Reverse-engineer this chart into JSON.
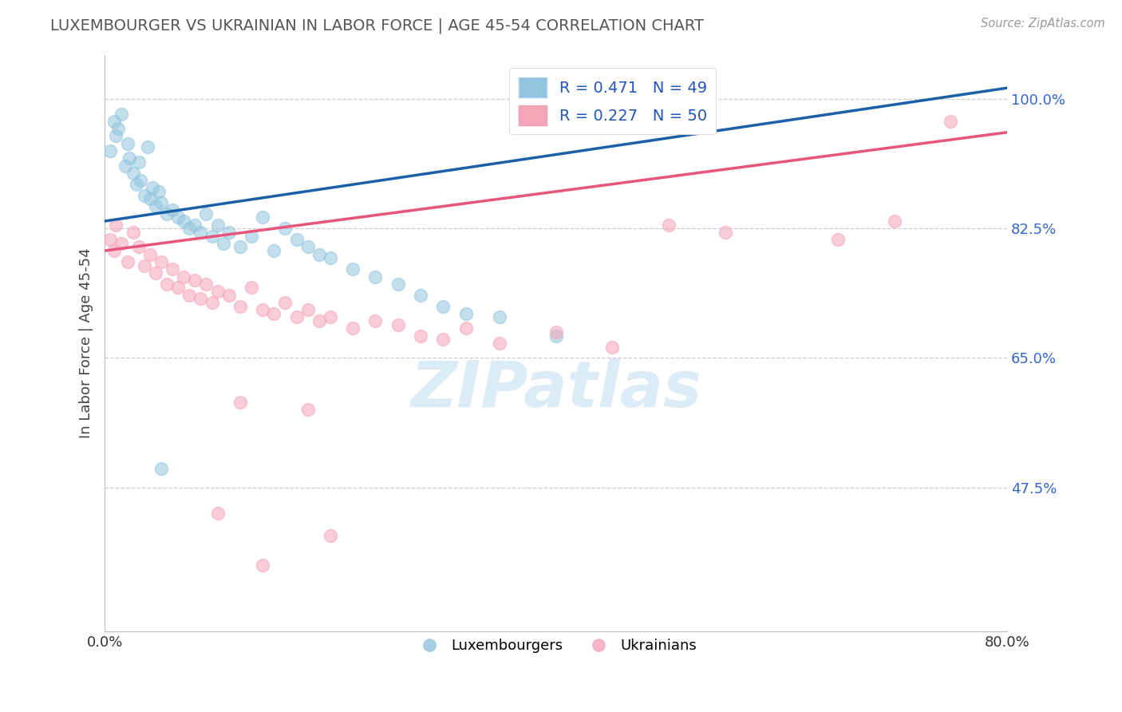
{
  "title": "LUXEMBOURGER VS UKRAINIAN IN LABOR FORCE | AGE 45-54 CORRELATION CHART",
  "source": "Source: ZipAtlas.com",
  "ylabel": "In Labor Force | Age 45-54",
  "xlim": [
    0.0,
    80.0
  ],
  "ylim": [
    28.0,
    106.0
  ],
  "yticks": [
    47.5,
    65.0,
    82.5,
    100.0
  ],
  "xticks": [
    0.0,
    80.0
  ],
  "legend_line1": "R = 0.471   N = 49",
  "legend_line2": "R = 0.227   N = 50",
  "color_blue": "#92c5de",
  "color_pink": "#f4a5b8",
  "color_blue_line": "#1a5fa8",
  "color_pink_line": "#e8547a",
  "watermark": "ZIPatlas",
  "blue_trend_x": [
    0,
    80
  ],
  "blue_trend_y": [
    83.5,
    101.5
  ],
  "pink_trend_x": [
    0,
    80
  ],
  "pink_trend_y": [
    79.5,
    95.5
  ],
  "blue_x": [
    0.5,
    0.8,
    1.0,
    1.2,
    1.5,
    1.8,
    2.0,
    2.2,
    2.5,
    2.8,
    3.0,
    3.2,
    3.5,
    3.8,
    4.0,
    4.2,
    4.5,
    4.8,
    5.0,
    5.5,
    6.0,
    6.5,
    7.0,
    7.5,
    8.0,
    8.5,
    9.0,
    9.5,
    10.0,
    10.5,
    11.0,
    12.0,
    13.0,
    14.0,
    15.0,
    16.0,
    17.0,
    18.0,
    19.0,
    20.0,
    22.0,
    24.0,
    26.0,
    28.0,
    30.0,
    32.0,
    35.0,
    40.0,
    5.0
  ],
  "blue_y": [
    93.0,
    97.0,
    95.0,
    96.0,
    98.0,
    91.0,
    94.0,
    92.0,
    90.0,
    88.5,
    91.5,
    89.0,
    87.0,
    93.5,
    86.5,
    88.0,
    85.5,
    87.5,
    86.0,
    84.5,
    85.0,
    84.0,
    83.5,
    82.5,
    83.0,
    82.0,
    84.5,
    81.5,
    83.0,
    80.5,
    82.0,
    80.0,
    81.5,
    84.0,
    79.5,
    82.5,
    81.0,
    80.0,
    79.0,
    78.5,
    77.0,
    76.0,
    75.0,
    73.5,
    72.0,
    71.0,
    70.5,
    68.0,
    50.0
  ],
  "pink_x": [
    0.5,
    0.8,
    1.0,
    1.5,
    2.0,
    2.5,
    3.0,
    3.5,
    4.0,
    4.5,
    5.0,
    5.5,
    6.0,
    6.5,
    7.0,
    7.5,
    8.0,
    8.5,
    9.0,
    9.5,
    10.0,
    11.0,
    12.0,
    13.0,
    14.0,
    15.0,
    16.0,
    17.0,
    18.0,
    19.0,
    20.0,
    22.0,
    24.0,
    26.0,
    28.0,
    30.0,
    32.0,
    35.0,
    40.0,
    45.0,
    50.0,
    55.0,
    65.0,
    70.0,
    75.0,
    12.0,
    18.0,
    10.0,
    14.0,
    20.0
  ],
  "pink_y": [
    81.0,
    79.5,
    83.0,
    80.5,
    78.0,
    82.0,
    80.0,
    77.5,
    79.0,
    76.5,
    78.0,
    75.0,
    77.0,
    74.5,
    76.0,
    73.5,
    75.5,
    73.0,
    75.0,
    72.5,
    74.0,
    73.5,
    72.0,
    74.5,
    71.5,
    71.0,
    72.5,
    70.5,
    71.5,
    70.0,
    70.5,
    69.0,
    70.0,
    69.5,
    68.0,
    67.5,
    69.0,
    67.0,
    68.5,
    66.5,
    83.0,
    82.0,
    81.0,
    83.5,
    97.0,
    59.0,
    58.0,
    44.0,
    37.0,
    41.0
  ]
}
